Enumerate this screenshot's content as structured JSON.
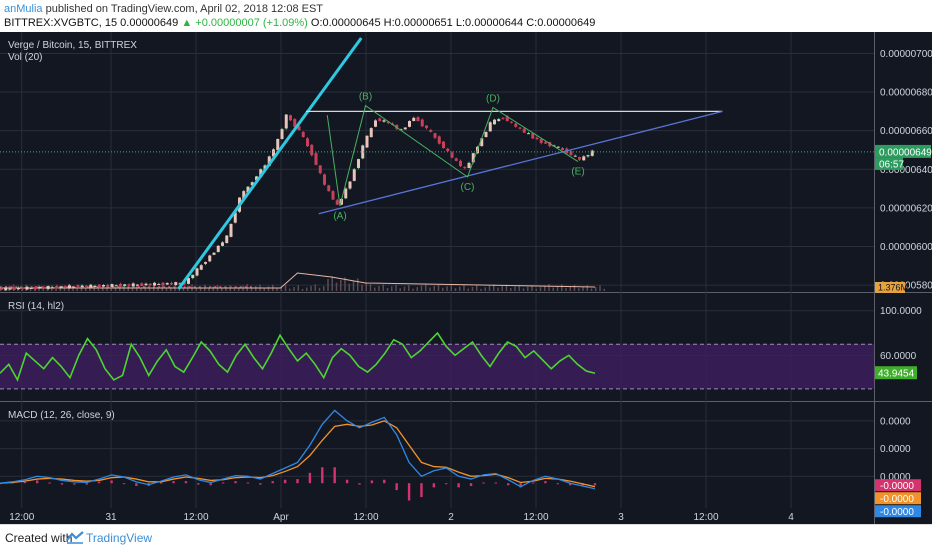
{
  "header": {
    "author": "anMulia",
    "published": "published on TradingView.com, April 02, 2018 12:08 EST",
    "symbol": "BITTREX:XVGBTC, 15",
    "last": "0.00000649",
    "change": "▲ +0.00000007 (+1.09%)",
    "ohlc": "O:0.00000645 H:0.00000651 L:0.00000644 C:0.00000649"
  },
  "footer": {
    "created": "Created with",
    "brand": "TradingView"
  },
  "colors": {
    "background": "#131722",
    "grid": "#2a2e39",
    "up": "#e8c4bb",
    "up_body": "#49b25f",
    "down": "#c8405a",
    "trendline": "#2ec8e0",
    "triangle_top": "#d6d6d6",
    "triangle_support": "#5a73d6",
    "wave": "#49b25f",
    "rsi": "#4cd52e",
    "rsi_band": "#3c1f5c",
    "macd": "#2f88e6",
    "signal": "#f1932b",
    "histogram": "#d4336d"
  },
  "chart_data": [
    {
      "type": "line",
      "panel": "price",
      "title": "Verge / Bitcoin, 15, BITTREX",
      "volume_label": "Vol (20)",
      "ylim": [
        5.78e-06,
        7.08e-06
      ],
      "y_ticks": [
        "0.00000700",
        "0.00000680",
        "0.00000660",
        "0.00000640",
        "0.00000620",
        "0.00000600",
        "0.00000580"
      ],
      "y_tick_values": [
        7e-06,
        6.8e-06,
        6.6e-06,
        6.4e-06,
        6.2e-06,
        6e-06,
        5.8e-06
      ],
      "x_ticks": [
        "12:00",
        "31",
        "12:00",
        "Apr",
        "12:00",
        "2",
        "12:00",
        "3",
        "12:00",
        "4"
      ],
      "last_price": "0.00000649",
      "countdown": "06:57",
      "volume": "1.376M",
      "close_series": [
        [
          0,
          5.78e-06
        ],
        [
          2.2,
          5.81e-06
        ],
        [
          2.5,
          5.95e-06
        ],
        [
          2.7,
          6.05e-06
        ],
        [
          2.85,
          6.25e-06
        ],
        [
          3.0,
          6.34e-06
        ],
        [
          3.15,
          6.42e-06
        ],
        [
          3.3,
          6.55e-06
        ],
        [
          3.4,
          6.68e-06
        ],
        [
          3.55,
          6.6e-06
        ],
        [
          3.7,
          6.48e-06
        ],
        [
          3.85,
          6.32e-06
        ],
        [
          4.0,
          6.21e-06
        ],
        [
          4.15,
          6.34e-06
        ],
        [
          4.3,
          6.52e-06
        ],
        [
          4.45,
          6.66e-06
        ],
        [
          4.6,
          6.64e-06
        ],
        [
          4.75,
          6.6e-06
        ],
        [
          4.9,
          6.67e-06
        ],
        [
          5.05,
          6.61e-06
        ],
        [
          5.2,
          6.54e-06
        ],
        [
          5.35,
          6.46e-06
        ],
        [
          5.5,
          6.4e-06
        ],
        [
          5.65,
          6.52e-06
        ],
        [
          5.8,
          6.64e-06
        ],
        [
          5.95,
          6.67e-06
        ],
        [
          6.1,
          6.62e-06
        ],
        [
          6.25,
          6.58e-06
        ],
        [
          6.4,
          6.54e-06
        ],
        [
          6.55,
          6.52e-06
        ],
        [
          6.7,
          6.49e-06
        ],
        [
          6.85,
          6.45e-06
        ],
        [
          7.0,
          6.49e-06
        ]
      ],
      "wave_labels": [
        {
          "label": "(A)",
          "x": 4.0,
          "y": 6.21e-06
        },
        {
          "label": "(B)",
          "x": 4.3,
          "y": 6.73e-06
        },
        {
          "label": "(C)",
          "x": 5.5,
          "y": 6.36e-06
        },
        {
          "label": "(D)",
          "x": 5.8,
          "y": 6.72e-06
        },
        {
          "label": "(E)",
          "x": 6.8,
          "y": 6.44e-06
        }
      ],
      "trendline": {
        "from": [
          2.1,
          5.78e-06
        ],
        "to": [
          4.25,
          7.08e-06
        ]
      },
      "triangle_top": {
        "from": [
          3.6,
          6.7e-06
        ],
        "to": [
          8.5,
          6.7e-06
        ]
      },
      "triangle_support": {
        "from": [
          3.75,
          6.17e-06
        ],
        "to": [
          8.5,
          6.7e-06
        ]
      }
    },
    {
      "type": "line",
      "panel": "rsi",
      "title": "RSI (14, hl2)",
      "ylim": [
        20,
        115
      ],
      "y_ticks": [
        "100.0000",
        "60.0000"
      ],
      "y_tick_values": [
        100,
        60
      ],
      "bands": [
        70,
        30
      ],
      "last_value": "43.9454",
      "values": [
        44,
        52,
        38,
        62,
        55,
        48,
        58,
        50,
        40,
        60,
        75,
        65,
        48,
        38,
        42,
        70,
        58,
        42,
        55,
        65,
        50,
        45,
        58,
        72,
        64,
        52,
        45,
        60,
        70,
        58,
        48,
        62,
        78,
        66,
        55,
        62,
        52,
        40,
        58,
        66,
        60,
        50,
        45,
        52,
        62,
        74,
        70,
        58,
        64,
        72,
        80,
        68,
        60,
        66,
        72,
        60,
        50,
        62,
        72,
        68,
        58,
        64,
        56,
        48,
        55,
        60,
        52,
        46,
        44
      ]
    },
    {
      "type": "line",
      "panel": "macd",
      "title": "MACD (12, 26, close, 9)",
      "ylim": [
        -3e-07,
        1.1e-06
      ],
      "y_ticks": [
        "0.0000",
        "0.0000",
        "0.0000"
      ],
      "y_tick_values": [
        9e-07,
        5e-07,
        1e-07
      ],
      "last_values": [
        "-0.0000",
        "-0.0000",
        "-0.0000"
      ],
      "macd": [
        0.0,
        2e-08,
        5e-08,
        1e-07,
        8e-08,
        4e-08,
        2e-08,
        1e-08,
        6e-08,
        1.2e-07,
        9e-08,
        2e-08,
        -2e-08,
        3e-08,
        9e-08,
        1.2e-07,
        5e-08,
        1e-08,
        6e-08,
        1.1e-07,
        1e-07,
        6e-08,
        1.4e-07,
        2.2e-07,
        3e-07,
        5.5e-07,
        8.5e-07,
        1.05e-06,
        9e-07,
        8e-07,
        8.8e-07,
        9.5e-07,
        7e-07,
        3e-07,
        1e-07,
        1.8e-07,
        2.2e-07,
        1e-07,
        6e-08,
        1.2e-07,
        1.4e-07,
        5e-08,
        -5e-08,
        4e-08,
        1e-07,
        6e-08,
        0.0,
        -4e-08,
        -8e-08
      ],
      "signal": [
        0.0,
        1e-08,
        3e-08,
        6e-08,
        7e-08,
        6e-08,
        4e-08,
        3e-08,
        4e-08,
        8e-08,
        9e-08,
        6e-08,
        2e-08,
        2e-08,
        6e-08,
        9e-08,
        7e-08,
        4e-08,
        5e-08,
        8e-08,
        9e-08,
        8e-08,
        1.1e-07,
        1.7e-07,
        2.4e-07,
        4e-07,
        6.2e-07,
        8.2e-07,
        8.5e-07,
        8.2e-07,
        8.4e-07,
        9e-07,
        8e-07,
        5.5e-07,
        3e-07,
        2.4e-07,
        2.3e-07,
        1.6e-07,
        1e-07,
        1.1e-07,
        1.3e-07,
        8e-08,
        1e-08,
        3e-08,
        7e-08,
        6e-08,
        3e-08,
        -1e-08,
        -5e-08
      ],
      "histogram": [
        0.0,
        1e-08,
        2e-08,
        4e-08,
        1e-08,
        -2e-08,
        -2e-08,
        -2e-08,
        2e-08,
        4e-08,
        0.0,
        -4e-08,
        -4e-08,
        1e-08,
        3e-08,
        3e-08,
        -2e-08,
        -3e-08,
        1e-08,
        3e-08,
        1e-08,
        -2e-08,
        3e-08,
        5e-08,
        6e-08,
        1.5e-07,
        2.3e-07,
        2.3e-07,
        5e-08,
        -2e-08,
        4e-08,
        5e-08,
        -1e-07,
        -2.5e-07,
        -2e-07,
        -6e-08,
        -1e-08,
        -6e-08,
        -4e-08,
        1e-08,
        1e-08,
        -3e-08,
        -6e-08,
        1e-08,
        3e-08,
        0.0,
        -3e-08,
        -3e-08,
        -3e-08
      ]
    }
  ]
}
